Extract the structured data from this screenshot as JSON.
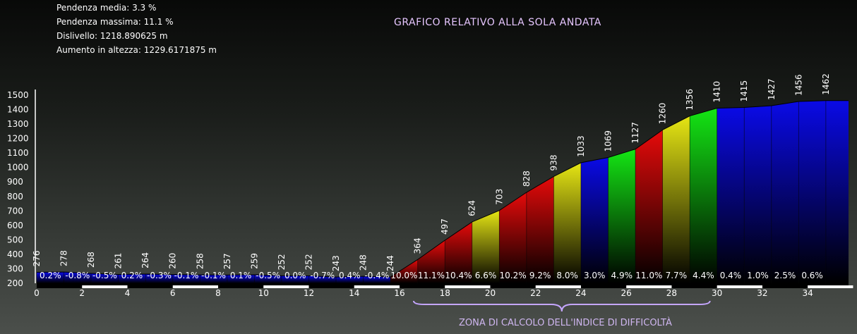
{
  "stats": {
    "avg_grade": "Pendenza media: 3.3 %",
    "max_grade": "Pendenza massima: 11.1 %",
    "elevation_diff": "Dislivello: 1218.890625 m",
    "elevation_gain": "Aumento in altezza: 1229.6171875 m"
  },
  "chart_title": "GRAFICO RELATIVO ALLA SOLA ANDATA",
  "zone_label": "ZONA DI CALCOLO DELL'INDICE DI DIFFICOLTÀ",
  "colors": {
    "blue": "#0a0ae6",
    "green": "#14e614",
    "yellow": "#e6e614",
    "red": "#e60a0a",
    "brace": "#c5a6ff"
  },
  "chart_data": {
    "type": "area",
    "x_ticks": [
      "0",
      "2",
      "4",
      "6",
      "8",
      "10",
      "12",
      "14",
      "16",
      "18",
      "20",
      "22",
      "24",
      "26",
      "28",
      "30",
      "32",
      "34"
    ],
    "y_ticks": [
      "200",
      "300",
      "400",
      "500",
      "600",
      "700",
      "800",
      "900",
      "1000",
      "1100",
      "1200",
      "1300",
      "1400",
      "1500"
    ],
    "ylim": [
      200,
      1500
    ],
    "xlim": [
      0,
      35.8
    ],
    "x": [
      0,
      1.2,
      2.4,
      3.6,
      4.8,
      6,
      7.2,
      8.4,
      9.6,
      10.8,
      12,
      13.2,
      14.4,
      15.6,
      16.8,
      18,
      19.2,
      20.4,
      21.6,
      22.8,
      24,
      25.2,
      26.4,
      27.6,
      28.8,
      30,
      31.2,
      32.4,
      33.6,
      34.8,
      35.8
    ],
    "elevations": [
      276,
      278,
      268,
      261,
      264,
      260,
      258,
      257,
      259,
      252,
      252,
      243,
      248,
      244,
      364,
      497,
      624,
      703,
      828,
      938,
      1033,
      1069,
      1127,
      1260,
      1356,
      1410,
      1415,
      1427,
      1456,
      1462,
      1462
    ],
    "elevation_labels": [
      "276",
      "278",
      "268",
      "261",
      "264",
      "260",
      "258",
      "257",
      "259",
      "252",
      "252",
      "243",
      "248",
      "244",
      "364",
      "497",
      "624",
      "703",
      "828",
      "938",
      "1033",
      "1069",
      "1127",
      "1260",
      "1356",
      "1410",
      "1415",
      "1427",
      "1456",
      "1462"
    ],
    "grades": [
      "0.2%",
      "-0.8%",
      "-0.5%",
      "0.2%",
      "-0.3%",
      "-0.1%",
      "-0.1%",
      "0.1%",
      "-0.5%",
      "0.0%",
      "-0.7%",
      "0.4%",
      "-0.4%",
      "10.0%",
      "11.1%",
      "10.4%",
      "6.6%",
      "10.2%",
      "9.2%",
      "8.0%",
      "3.0%",
      "4.9%",
      "11.0%",
      "7.7%",
      "4.4%",
      "0.4%",
      "1.0%",
      "2.5%",
      "0.6%"
    ],
    "segment_colors": [
      "blue",
      "blue",
      "blue",
      "blue",
      "blue",
      "blue",
      "blue",
      "blue",
      "blue",
      "blue",
      "blue",
      "blue",
      "blue",
      "red",
      "red",
      "red",
      "yellow",
      "red",
      "red",
      "yellow",
      "blue",
      "green",
      "red",
      "yellow",
      "green",
      "blue",
      "blue",
      "blue",
      "blue",
      "blue"
    ],
    "difficulty_zone": [
      16,
      30
    ]
  }
}
